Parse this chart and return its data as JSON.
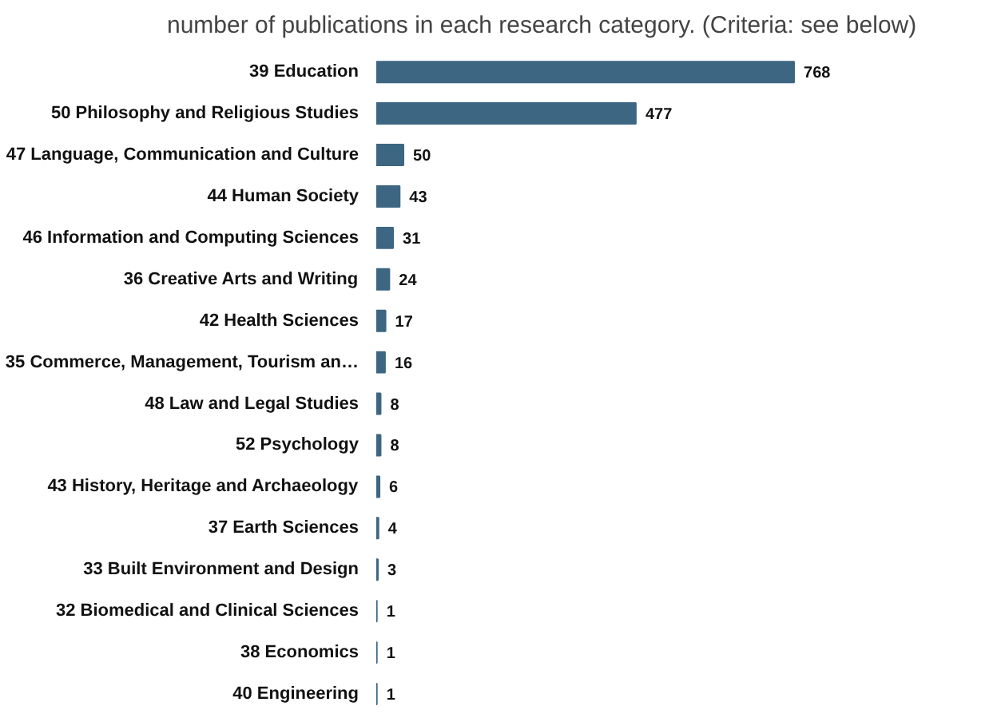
{
  "chart_data": {
    "type": "bar",
    "orientation": "horizontal",
    "title": "number of publications in each research category. (Criteria: see below)",
    "categories": [
      "39 Education",
      "50 Philosophy and Religious Studies",
      "47 Language, Communication and Culture",
      "44 Human Society",
      "46 Information and Computing Sciences",
      "36 Creative Arts and Writing",
      "42 Health Sciences",
      "35 Commerce, Management, Tourism an…",
      "48 Law and Legal Studies",
      "52 Psychology",
      "43 History, Heritage and Archaeology",
      "37 Earth Sciences",
      "33 Built Environment and Design",
      "32 Biomedical and Clinical Sciences",
      "38 Economics",
      "40 Engineering"
    ],
    "values": [
      768,
      477,
      50,
      43,
      31,
      24,
      17,
      16,
      8,
      8,
      6,
      4,
      3,
      1,
      1,
      1
    ],
    "color": "#3d6683",
    "data_labels": true
  }
}
